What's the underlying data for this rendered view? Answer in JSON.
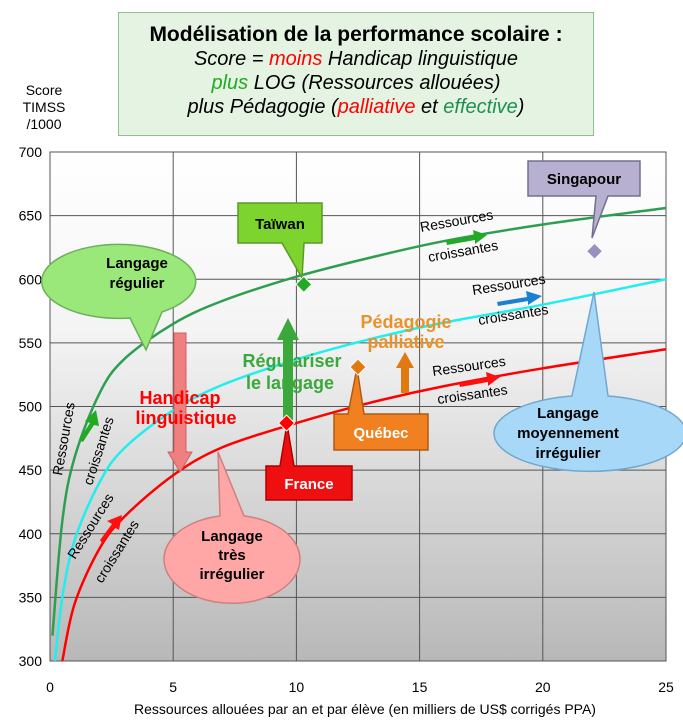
{
  "title": {
    "line1": "Modélisation de la performance scolaire :",
    "line2_a": "Score = ",
    "line2_b": "moins",
    "line2_c": " Handicap linguistique",
    "line3_a": "plus",
    "line3_b": " LOG (Ressources allouées)",
    "line4_a": "plus Pédagogie (",
    "line4_b": "palliative",
    "line4_c": " et ",
    "line4_d": "effective",
    "line4_e": ")"
  },
  "y_axis_label": [
    "Score",
    "TIMSS",
    "/1000"
  ],
  "x_axis_label": "Ressources allouées par an et par élève (en milliers de US$ corrigés PPA)",
  "colors": {
    "green": "#2e9e50",
    "cyan": "#22eeee",
    "red": "#ff0000",
    "orange": "#e07a10",
    "bubble_green": "#9be87a",
    "bubble_pink": "#ffa6a6",
    "bubble_blue": "#a8d8f8",
    "bubble_purple": "#b8b0d0"
  },
  "chart_data": {
    "type": "line",
    "xlim": [
      0,
      25
    ],
    "ylim": [
      300,
      700
    ],
    "x_ticks": [
      0,
      5,
      10,
      15,
      20,
      25
    ],
    "y_ticks": [
      300,
      350,
      400,
      450,
      500,
      550,
      600,
      650,
      700
    ],
    "grid": true,
    "series": [
      {
        "color": "#2e9e50",
        "x": [
          0.1,
          0.5,
          1,
          2,
          3,
          5,
          7,
          10,
          13,
          16,
          20,
          25
        ],
        "y": [
          320,
          410,
          460,
          510,
          537,
          565,
          583,
          602,
          617,
          630,
          643,
          656
        ]
      },
      {
        "color": "#22eeee",
        "x": [
          0.2,
          0.5,
          1,
          2,
          3,
          5,
          7,
          10,
          13,
          16,
          20,
          25
        ],
        "y": [
          300,
          350,
          395,
          440,
          467,
          497,
          517,
          537,
          553,
          566,
          580,
          600
        ]
      },
      {
        "color": "#ff0000",
        "x": [
          0.5,
          1,
          2,
          3,
          5,
          7,
          10,
          13,
          16,
          20,
          25
        ],
        "y": [
          300,
          345,
          388,
          413,
          446,
          468,
          487,
          503,
          516,
          530,
          545
        ]
      }
    ],
    "points": [
      {
        "label": "Taïwan",
        "x": 10.3,
        "y": 596,
        "color": "#22aa22"
      },
      {
        "label": "France",
        "x": 9.6,
        "y": 487,
        "color": "#ff0000"
      },
      {
        "label": "Québec",
        "x": 12.5,
        "y": 531,
        "color": "#e07a10"
      },
      {
        "label": "Singapour",
        "x": 22.1,
        "y": 622,
        "color": "#9a90c0"
      }
    ],
    "annotations": {
      "handicap": [
        "Handicap",
        "linguistique"
      ],
      "regulariser": [
        "Régulariser",
        "le langage"
      ],
      "pedagogie": [
        "Pédagogie",
        "palliative"
      ],
      "ressources": [
        "Ressources",
        "croissantes"
      ],
      "langage_regulier": [
        "Langage",
        "régulier"
      ],
      "langage_tres_irregulier": [
        "Langage",
        "très",
        "irrégulier"
      ],
      "langage_moyennement_irregulier": [
        "Langage",
        "moyennement",
        "irrégulier"
      ]
    }
  }
}
